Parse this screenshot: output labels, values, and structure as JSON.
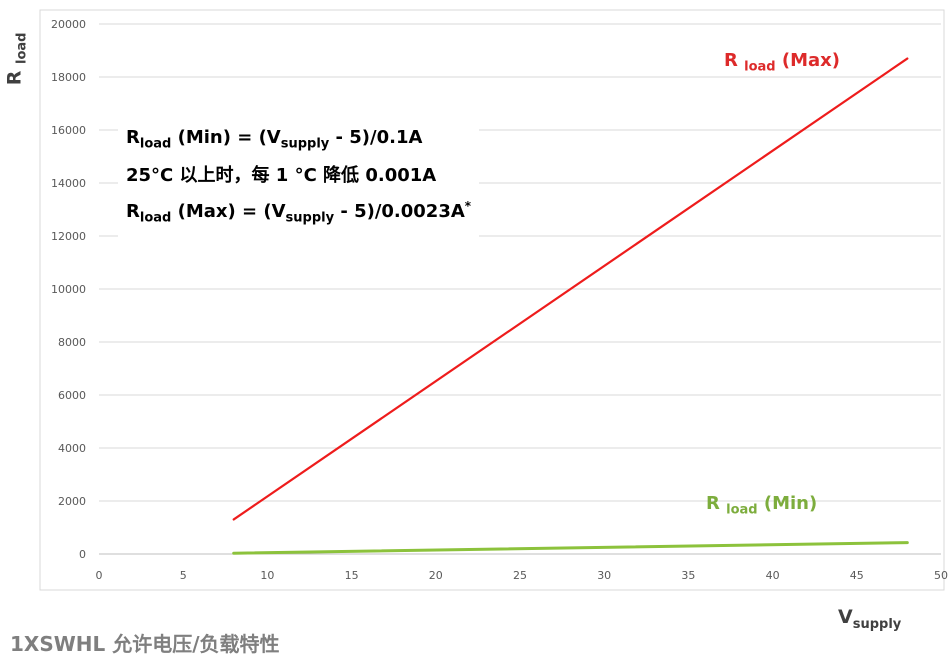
{
  "chart_data": {
    "type": "line",
    "x": [
      8,
      48
    ],
    "series": [
      {
        "name": "R load (Max)",
        "color": "#ee1c1c",
        "values": [
          1304,
          18696
        ]
      },
      {
        "name": "R load (Min)",
        "color": "#8cc23c",
        "values": [
          30,
          430
        ]
      }
    ],
    "xlim": [
      0,
      50
    ],
    "ylim": [
      0,
      20000
    ],
    "xticks": [
      0,
      5,
      10,
      15,
      20,
      25,
      30,
      35,
      40,
      45,
      50
    ],
    "yticks": [
      0,
      2000,
      4000,
      6000,
      8000,
      10000,
      12000,
      14000,
      16000,
      18000,
      20000
    ],
    "grid": true,
    "ylabel": {
      "main": "R",
      "sub": "load"
    },
    "xlabel": {
      "main": "V",
      "sub": "supply"
    }
  },
  "series_labels": {
    "max": {
      "main": "R ",
      "sub": "load",
      "tail": " (Max)"
    },
    "min": {
      "main": "R ",
      "sub": "load",
      "tail": " (Min)"
    }
  },
  "formulas": {
    "line1": {
      "r": "R",
      "sub": "load",
      "mid": " (Min) = (V",
      "sub2": "supply",
      "tail": " - 5)/0.1A"
    },
    "line2": "25°C 以上时，每 1 °C 降低 0.001A",
    "line3": {
      "r": "R",
      "sub": "load",
      "mid": " (Max) = (V",
      "sub2": "supply",
      "tail": " - 5)/0.0023A",
      "sup": "*"
    }
  },
  "caption": "1XSWHL 允许电压/负载特性"
}
